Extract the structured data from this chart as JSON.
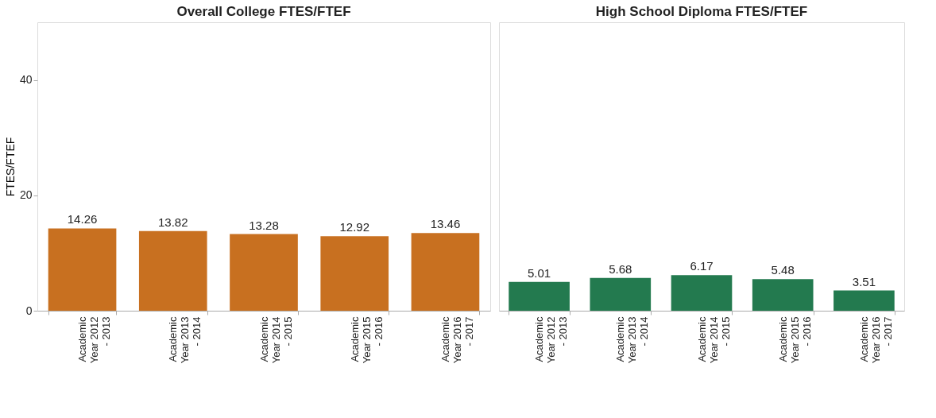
{
  "chart_data": [
    {
      "type": "bar",
      "title": "Overall College FTES/FTEF",
      "ylabel": "FTES/FTEF",
      "categories": [
        "Academic Year 2012 - 2013",
        "Academic Year 2013 - 2014",
        "Academic Year 2014 - 2015",
        "Academic Year 2015 - 2016",
        "Academic Year 2016 - 2017"
      ],
      "values": [
        14.26,
        13.82,
        13.28,
        12.92,
        13.46
      ],
      "color": "#c87020",
      "ylim": [
        0,
        50
      ],
      "yticks": [
        0,
        20,
        40
      ],
      "data_labels": true
    },
    {
      "type": "bar",
      "title": "High School Diploma FTES/FTEF",
      "categories": [
        "Academic Year 2012 - 2013",
        "Academic Year 2013 - 2014",
        "Academic Year 2014 - 2015",
        "Academic Year 2015 - 2016",
        "Academic Year 2016 - 2017"
      ],
      "values": [
        5.01,
        5.68,
        6.17,
        5.48,
        3.51
      ],
      "color": "#237a4f",
      "ylim": [
        0,
        50
      ],
      "yticks": [
        0,
        20,
        40
      ],
      "data_labels": true,
      "tick_labels": "x"
    }
  ]
}
